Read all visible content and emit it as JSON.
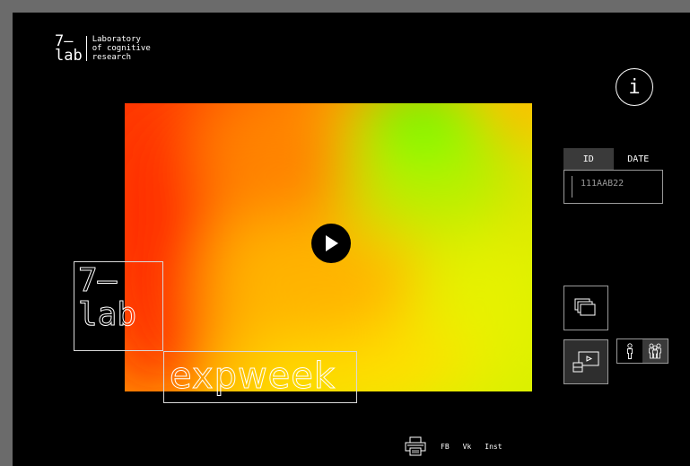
{
  "logo": {
    "mark_line1": "7—",
    "mark_line2": "lab",
    "text_line1": "Laboratory",
    "text_line2": "of cognitive",
    "text_line3": "research"
  },
  "info_button": {
    "label": "i"
  },
  "tabs": [
    {
      "label": "ID",
      "active": true
    },
    {
      "label": "DATE",
      "active": false
    }
  ],
  "id_input": {
    "value": "111AAB22"
  },
  "watermark": {
    "line1": "7—",
    "line2": "lab",
    "word": "expweek"
  },
  "footer": {
    "links": [
      "FB",
      "Vk",
      "Inst"
    ]
  },
  "colors": {
    "background": "#000000",
    "frame": "#6b6b6b",
    "heat_low": "#ff3300",
    "heat_mid": "#ffd000",
    "heat_high": "#66ff00"
  },
  "icons": [
    "info-icon",
    "play-icon",
    "layers-icon",
    "video-icon",
    "person-icon",
    "people-icon",
    "print-icon"
  ]
}
